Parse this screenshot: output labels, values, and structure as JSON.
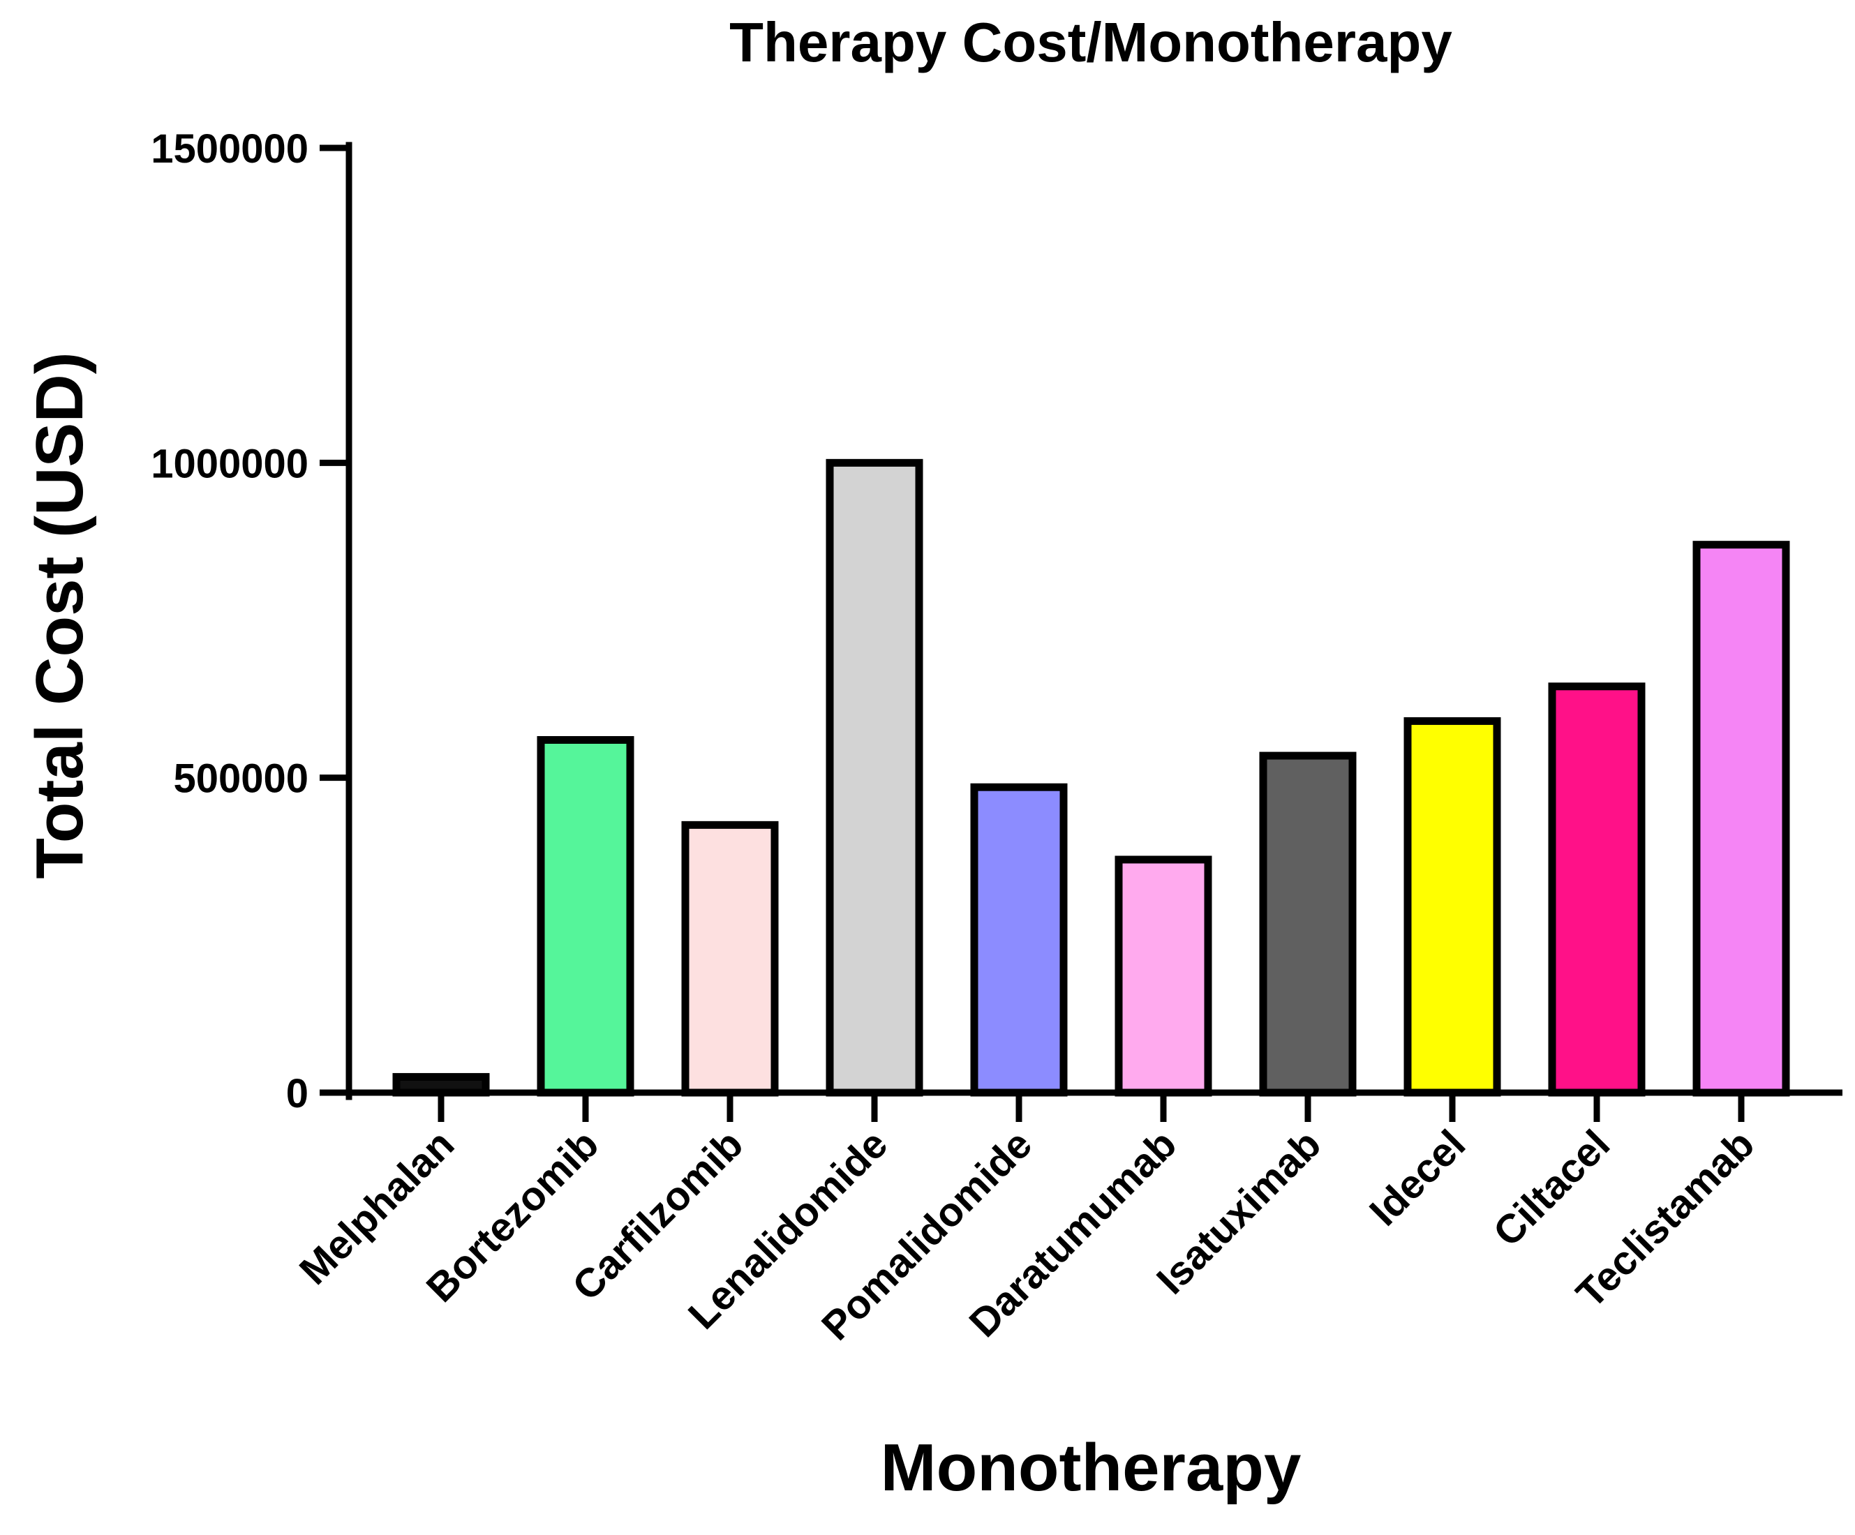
{
  "chart_data": {
    "type": "bar",
    "title": "Therapy Cost/Monotherapy",
    "xlabel": "Monotherapy",
    "ylabel": "Total Cost (USD)",
    "ylim": [
      0,
      1500000
    ],
    "yticks": [
      0,
      500000,
      1000000,
      1500000
    ],
    "ytick_labels": [
      "0",
      "500000",
      "1000000",
      "1500000"
    ],
    "categories": [
      "Melphalan",
      "Bortezomib",
      "Carfilzomib",
      "Lenalidomide",
      "Pomalidomide",
      "Daratumumab",
      "Isatuximab",
      "Idecel",
      "Ciltacel",
      "Teclistamab"
    ],
    "values": [
      25000,
      560000,
      425000,
      1000000,
      485000,
      370000,
      535000,
      590000,
      645000,
      870000
    ],
    "colors": [
      "#111111",
      "#55f59a",
      "#fde0e0",
      "#d3d3d3",
      "#8c8cff",
      "#ffaaee",
      "#606060",
      "#ffff00",
      "#ff1188",
      "#f585f5"
    ],
    "grid": false,
    "legend": "none"
  }
}
